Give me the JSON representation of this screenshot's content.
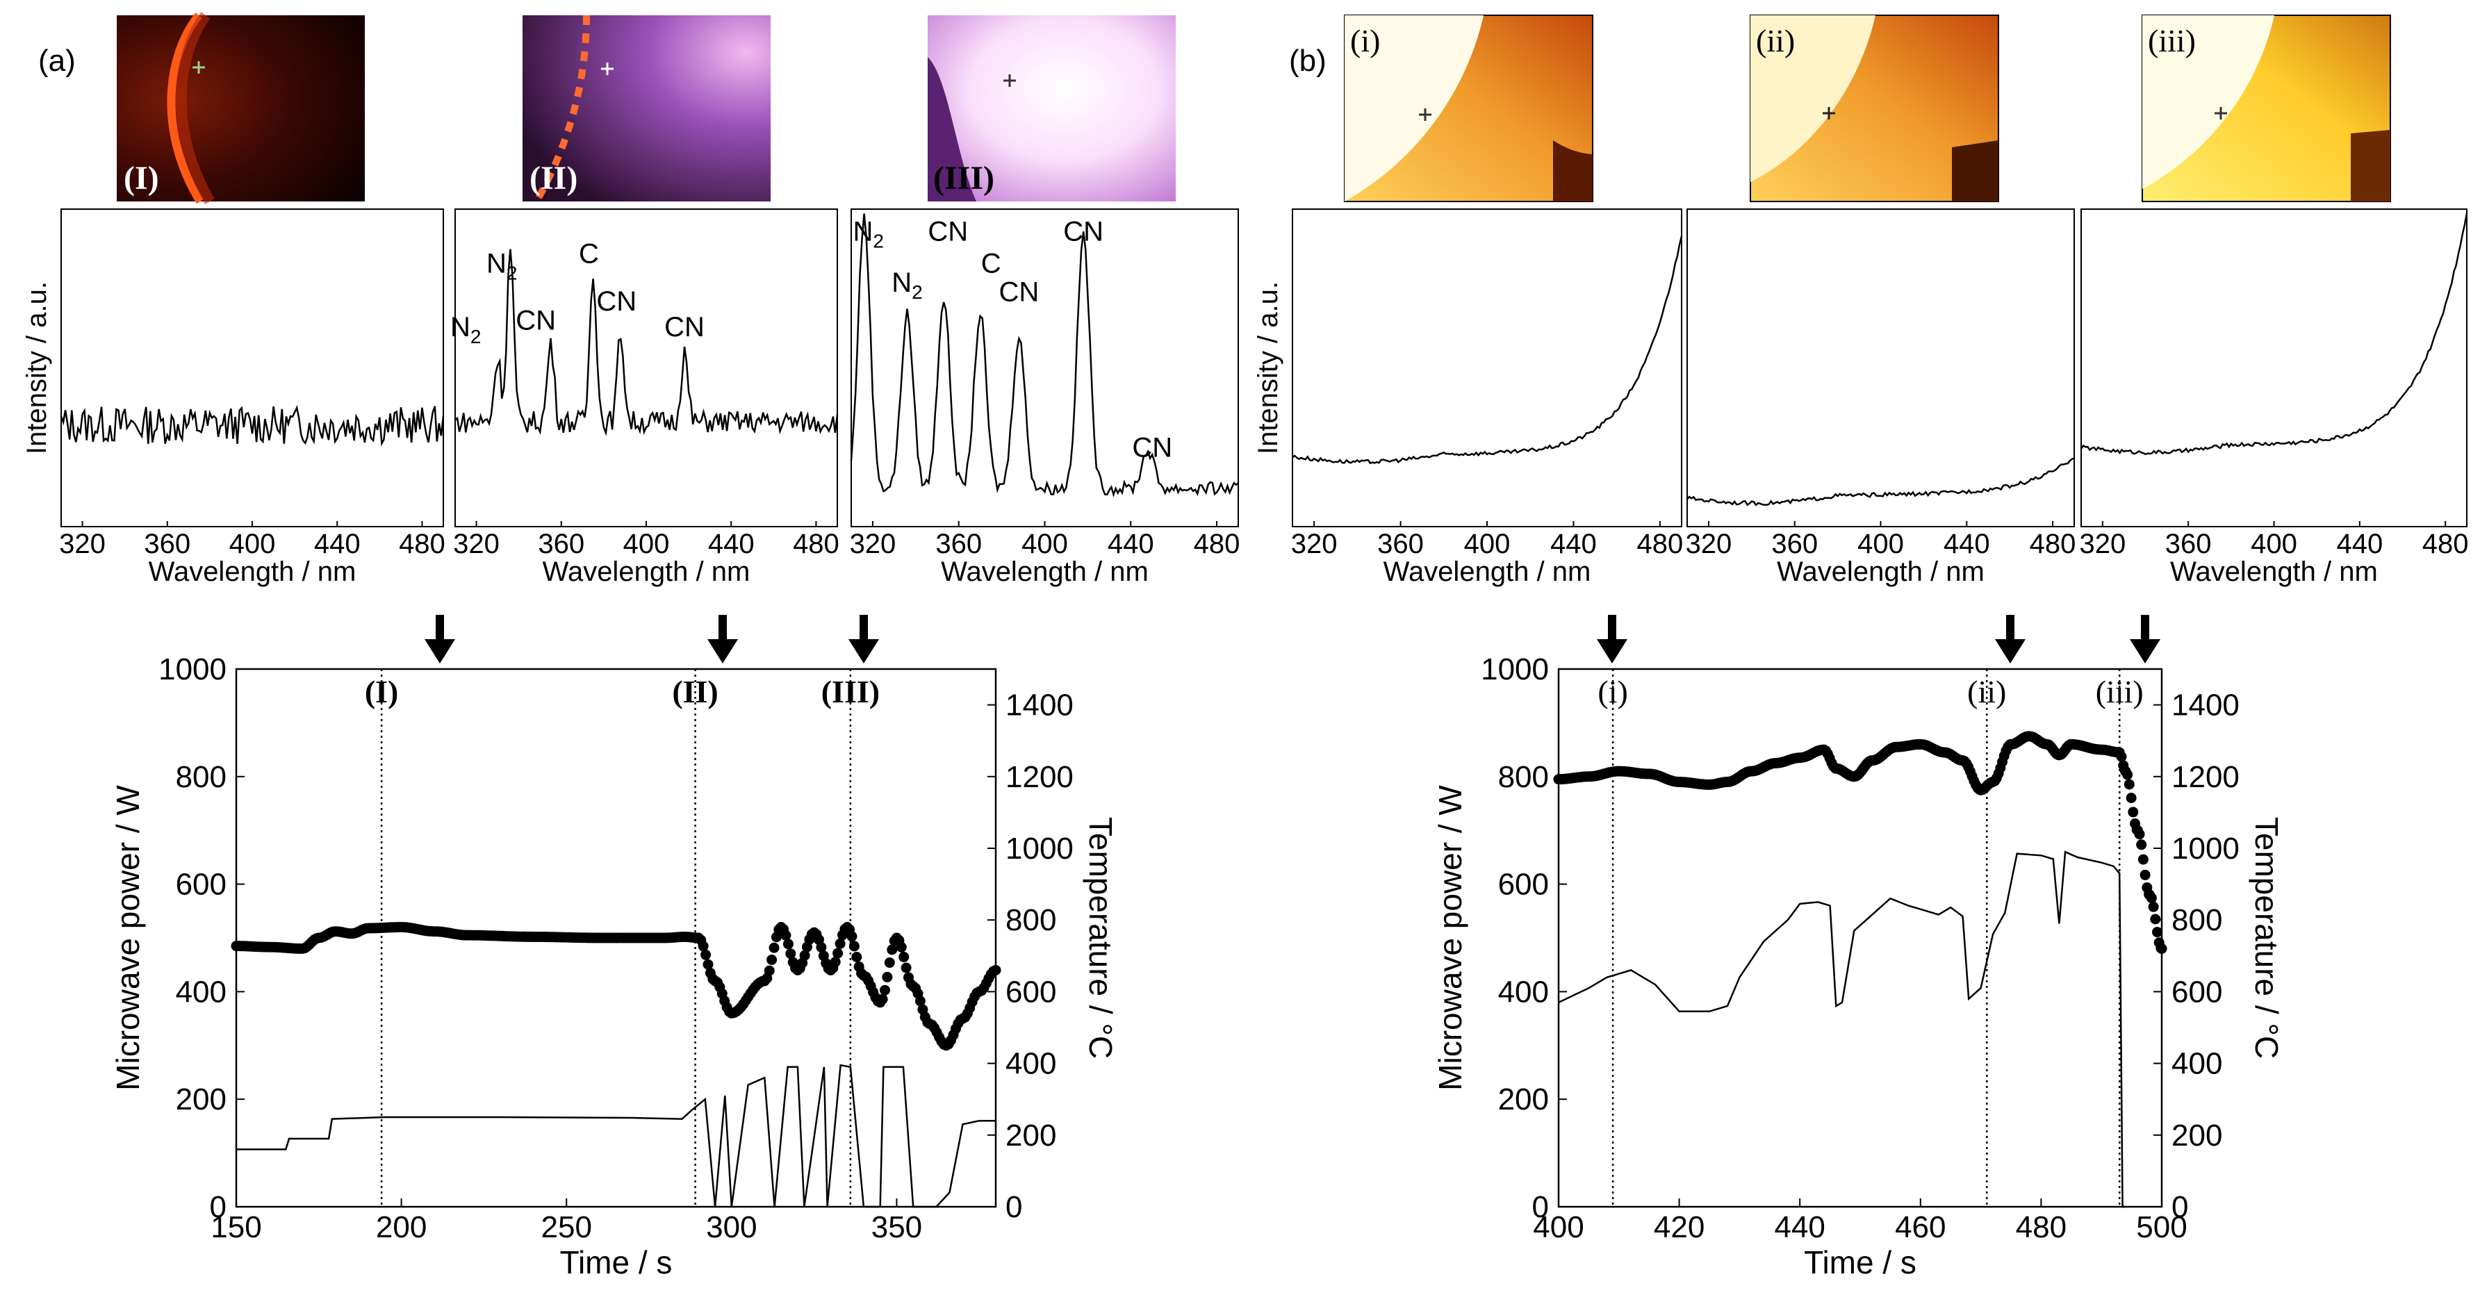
{
  "panel_labels": {
    "a": "(a)",
    "b": "(b)"
  },
  "photos": [
    {
      "label": "(I)",
      "style": "dark"
    },
    {
      "label": "(II)",
      "style": "purple"
    },
    {
      "label": "(III)",
      "style": "bright"
    },
    {
      "label": "(i)",
      "style": "orange"
    },
    {
      "label": "(ii)",
      "style": "orange"
    },
    {
      "label": "(iii)",
      "style": "yellow"
    }
  ],
  "colors": {
    "line": "#000000",
    "frame": "#000000",
    "arrow": "#000000",
    "background": "#ffffff"
  },
  "icons": [
    "down-arrow-icon",
    "crosshair-icon"
  ],
  "chart_data": [
    {
      "type": "line",
      "id": "spectrum-I",
      "panel": "a",
      "kind": "noisy",
      "xlabel": "Wavelength / nm",
      "ylabel": "Intensity / a.u.",
      "xlim": [
        310,
        490
      ],
      "ylim": [
        0,
        1
      ],
      "xticks": [
        320,
        360,
        400,
        440,
        480
      ],
      "tick_labels": [
        "320",
        "360",
        "400",
        "440",
        "480"
      ],
      "baseline": 0.32,
      "annotations": []
    },
    {
      "type": "line",
      "id": "spectrum-II",
      "panel": "a",
      "kind": "peaks",
      "xlabel": "Wavelength / nm",
      "xlim": [
        310,
        490
      ],
      "ylim": [
        0,
        1
      ],
      "xticks": [
        320,
        360,
        400,
        440,
        480
      ],
      "tick_labels": [
        "320",
        "360",
        "400",
        "440",
        "480"
      ],
      "baseline": 0.33,
      "peaks": [
        [
          330,
          0.2
        ],
        [
          336,
          0.55
        ],
        [
          355,
          0.25
        ],
        [
          375,
          0.48
        ],
        [
          388,
          0.28
        ],
        [
          418,
          0.22
        ]
      ],
      "annotations": [
        {
          "text": "N",
          "sub": "2",
          "x": 315,
          "y": 0.6
        },
        {
          "text": "N",
          "sub": "2",
          "x": 332,
          "y": 0.8
        },
        {
          "text": "CN",
          "x": 348,
          "y": 0.62
        },
        {
          "text": "C",
          "x": 373,
          "y": 0.83
        },
        {
          "text": "CN",
          "x": 386,
          "y": 0.68
        },
        {
          "text": "CN",
          "x": 418,
          "y": 0.6
        }
      ]
    },
    {
      "type": "line",
      "id": "spectrum-III",
      "panel": "a",
      "kind": "peaks-strong",
      "xlabel": "Wavelength / nm",
      "xlim": [
        310,
        490
      ],
      "ylim": [
        0,
        1
      ],
      "xticks": [
        320,
        360,
        400,
        440,
        480
      ],
      "tick_labels": [
        "320",
        "360",
        "400",
        "440",
        "480"
      ],
      "baseline": 0.12,
      "peaks": [
        [
          316,
          0.85
        ],
        [
          336,
          0.55
        ],
        [
          353,
          0.6
        ],
        [
          370,
          0.55
        ],
        [
          388,
          0.48
        ],
        [
          418,
          0.8
        ],
        [
          448,
          0.12
        ]
      ],
      "annotations": [
        {
          "text": "N",
          "sub": "2",
          "x": 318,
          "y": 0.9
        },
        {
          "text": "N",
          "sub": "2",
          "x": 336,
          "y": 0.74
        },
        {
          "text": "CN",
          "x": 355,
          "y": 0.9
        },
        {
          "text": "C",
          "x": 375,
          "y": 0.8
        },
        {
          "text": "CN",
          "x": 388,
          "y": 0.71
        },
        {
          "text": "CN",
          "x": 418,
          "y": 0.9
        },
        {
          "text": "CN",
          "x": 450,
          "y": 0.22
        }
      ]
    },
    {
      "type": "line",
      "id": "spectrum-i",
      "panel": "b",
      "kind": "rising",
      "xlabel": "Wavelength / nm",
      "ylabel": "Intensity / a.u.",
      "xlim": [
        310,
        490
      ],
      "ylim": [
        0,
        1
      ],
      "xticks": [
        320,
        360,
        400,
        440,
        480
      ],
      "tick_labels": [
        "320",
        "360",
        "400",
        "440",
        "480"
      ],
      "baseline": 0.22,
      "rise": 0.68,
      "annotations": []
    },
    {
      "type": "line",
      "id": "spectrum-ii",
      "panel": "b",
      "kind": "rising",
      "xlabel": "Wavelength / nm",
      "xlim": [
        310,
        490
      ],
      "ylim": [
        0,
        1
      ],
      "xticks": [
        320,
        360,
        400,
        440,
        480
      ],
      "tick_labels": [
        "320",
        "360",
        "400",
        "440",
        "480"
      ],
      "baseline": 0.09,
      "rise": 0.11,
      "annotations": []
    },
    {
      "type": "line",
      "id": "spectrum-iii",
      "panel": "b",
      "kind": "rising",
      "xlabel": "Wavelength / nm",
      "xlim": [
        310,
        490
      ],
      "ylim": [
        0,
        1
      ],
      "xticks": [
        320,
        360,
        400,
        440,
        480
      ],
      "tick_labels": [
        "320",
        "360",
        "400",
        "440",
        "480"
      ],
      "baseline": 0.25,
      "rise": 0.72,
      "annotations": []
    },
    {
      "type": "line",
      "id": "time-a",
      "panel": "a",
      "xlabel": "Time / s",
      "ylabel": "Microwave power / W",
      "y2label": "Temperature / °C",
      "xlim": [
        150,
        380
      ],
      "ylim": [
        0,
        1000
      ],
      "y2lim": [
        0,
        1500
      ],
      "xticks": [
        150,
        200,
        250,
        300,
        350
      ],
      "yticks": [
        0,
        200,
        400,
        600,
        800,
        1000
      ],
      "y2ticks": [
        0,
        200,
        400,
        600,
        800,
        1000,
        1200,
        1400
      ],
      "markers": [
        {
          "x": 194,
          "label": "(I)"
        },
        {
          "x": 289,
          "label": "(II)"
        },
        {
          "x": 336,
          "label": "(III)"
        }
      ],
      "series": [
        {
          "name": "Microwave power",
          "axis": "left",
          "style": "dots",
          "x": [
            150,
            160,
            170,
            175,
            180,
            185,
            190,
            200,
            210,
            220,
            240,
            260,
            280,
            286,
            290,
            295,
            300,
            310,
            315,
            320,
            325,
            330,
            335,
            340,
            345,
            350,
            355,
            360,
            365,
            370,
            375,
            380
          ],
          "y": [
            485,
            483,
            480,
            500,
            512,
            508,
            518,
            520,
            512,
            505,
            502,
            500,
            500,
            502,
            500,
            420,
            360,
            420,
            520,
            440,
            510,
            440,
            520,
            430,
            380,
            500,
            410,
            340,
            300,
            350,
            400,
            440
          ]
        },
        {
          "name": "Temperature",
          "axis": "right",
          "style": "line",
          "x": [
            150,
            165,
            166,
            178,
            179,
            195,
            230,
            270,
            285,
            288,
            292,
            295,
            298,
            300,
            305,
            310,
            313,
            317,
            320,
            322,
            328,
            329,
            333,
            336,
            340,
            345,
            346,
            352,
            355,
            362,
            366,
            370,
            375,
            380
          ],
          "y": [
            160,
            160,
            190,
            190,
            245,
            250,
            250,
            248,
            245,
            270,
            300,
            0,
            310,
            0,
            340,
            360,
            0,
            390,
            390,
            0,
            390,
            0,
            395,
            390,
            0,
            0,
            390,
            390,
            0,
            0,
            40,
            230,
            240,
            240
          ]
        }
      ]
    },
    {
      "type": "line",
      "id": "time-b",
      "panel": "b",
      "xlabel": "Time / s",
      "ylabel": "Microwave power / W",
      "y2label": "Temperature / °C",
      "xlim": [
        400,
        500
      ],
      "ylim": [
        0,
        1000
      ],
      "y2lim": [
        0,
        1500
      ],
      "xticks": [
        400,
        420,
        440,
        460,
        480,
        500
      ],
      "yticks": [
        0,
        200,
        400,
        600,
        800,
        1000
      ],
      "y2ticks": [
        0,
        200,
        400,
        600,
        800,
        1000,
        1200,
        1400
      ],
      "markers": [
        {
          "x": 409,
          "label": "(i)"
        },
        {
          "x": 471,
          "label": "(ii)"
        },
        {
          "x": 493,
          "label": "(iii)"
        }
      ],
      "series": [
        {
          "name": "Microwave power",
          "axis": "left",
          "style": "dots",
          "x": [
            400,
            405,
            410,
            415,
            420,
            425,
            428,
            432,
            436,
            440,
            444,
            446,
            449,
            452,
            456,
            460,
            464,
            467,
            470,
            472,
            475,
            478,
            481,
            483,
            485,
            490,
            493,
            494,
            496,
            498,
            500
          ],
          "y": [
            795,
            800,
            810,
            805,
            790,
            785,
            790,
            810,
            825,
            835,
            850,
            815,
            800,
            830,
            855,
            860,
            845,
            830,
            775,
            790,
            860,
            875,
            860,
            840,
            860,
            850,
            845,
            810,
            700,
            580,
            480
          ]
        },
        {
          "name": "Temperature",
          "axis": "right",
          "style": "line",
          "x": [
            400,
            405,
            408,
            412,
            416,
            420,
            425,
            428,
            430,
            434,
            438,
            440,
            443,
            445,
            446,
            447,
            449,
            451,
            455,
            458,
            460,
            463,
            465,
            467,
            468,
            470,
            472,
            474,
            476,
            480,
            482,
            483,
            484,
            486,
            490,
            492,
            493,
            493.5,
            494
          ],
          "y": [
            570,
            610,
            640,
            660,
            620,
            545,
            545,
            560,
            640,
            740,
            800,
            845,
            850,
            840,
            560,
            570,
            770,
            800,
            860,
            840,
            830,
            815,
            835,
            810,
            580,
            610,
            760,
            820,
            985,
            980,
            970,
            790,
            990,
            975,
            960,
            950,
            930,
            0,
            0
          ]
        }
      ]
    }
  ]
}
